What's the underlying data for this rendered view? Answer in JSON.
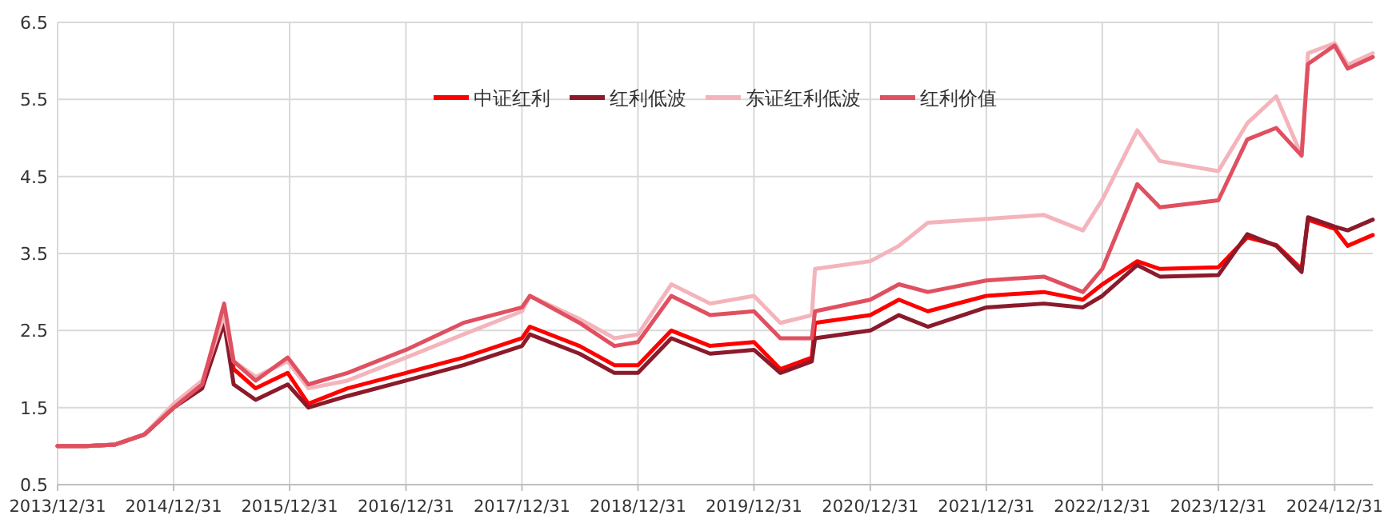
{
  "chart_data": {
    "type": "line",
    "x": [
      "2013-12-31",
      "2014-03-31",
      "2014-06-30",
      "2014-09-30",
      "2014-12-31",
      "2015-03-31",
      "2015-06-08",
      "2015-07-08",
      "2015-09-15",
      "2015-12-25",
      "2016-02-28",
      "2016-06-30",
      "2016-12-31",
      "2017-06-30",
      "2017-12-31",
      "2018-01-25",
      "2018-06-30",
      "2018-10-18",
      "2018-12-31",
      "2019-04-15",
      "2019-08-15",
      "2019-12-31",
      "2020-03-23",
      "2020-06-30",
      "2020-07-10",
      "2020-12-31",
      "2021-03-31",
      "2021-06-30",
      "2021-12-31",
      "2022-06-30",
      "2022-10-31",
      "2022-12-31",
      "2023-04-20",
      "2023-06-30",
      "2023-12-31",
      "2024-03-31",
      "2024-06-30",
      "2024-09-18",
      "2024-10-08",
      "2024-12-31",
      "2025-02-10",
      "2025-04-30"
    ],
    "series": [
      {
        "name": "中证红利",
        "color": "#ff0000",
        "values": [
          1.0,
          1.0,
          1.02,
          1.15,
          1.5,
          1.8,
          2.8,
          2.0,
          1.75,
          1.95,
          1.55,
          1.75,
          1.95,
          2.15,
          2.4,
          2.55,
          2.3,
          2.05,
          2.05,
          2.5,
          2.3,
          2.35,
          2.0,
          2.15,
          2.6,
          2.7,
          2.9,
          2.75,
          2.95,
          3.0,
          2.9,
          3.1,
          3.4,
          3.3,
          3.32,
          3.71,
          3.61,
          3.3,
          3.94,
          3.82,
          3.6,
          3.74
        ]
      },
      {
        "name": "红利低波",
        "color": "#8b1a2b",
        "values": [
          1.0,
          1.0,
          1.02,
          1.15,
          1.5,
          1.75,
          2.6,
          1.8,
          1.6,
          1.8,
          1.5,
          1.65,
          1.85,
          2.05,
          2.3,
          2.45,
          2.2,
          1.95,
          1.95,
          2.4,
          2.2,
          2.25,
          1.95,
          2.1,
          2.4,
          2.5,
          2.7,
          2.55,
          2.8,
          2.85,
          2.8,
          2.95,
          3.35,
          3.2,
          3.22,
          3.75,
          3.6,
          3.26,
          3.97,
          3.85,
          3.8,
          3.94
        ]
      },
      {
        "name": "东证红利低波",
        "color": "#f4b4bc",
        "values": [
          1.0,
          1.0,
          1.02,
          1.15,
          1.55,
          1.85,
          2.7,
          2.1,
          1.9,
          2.1,
          1.75,
          1.85,
          2.15,
          2.45,
          2.75,
          2.95,
          2.65,
          2.4,
          2.45,
          3.1,
          2.85,
          2.95,
          2.6,
          2.7,
          3.3,
          3.4,
          3.6,
          3.9,
          3.95,
          4.0,
          3.8,
          4.2,
          5.1,
          4.7,
          4.57,
          5.19,
          5.54,
          4.77,
          6.1,
          6.23,
          5.95,
          6.1
        ]
      },
      {
        "name": "红利价值",
        "color": "#e05060",
        "values": [
          1.0,
          1.0,
          1.02,
          1.15,
          1.5,
          1.8,
          2.85,
          2.1,
          1.85,
          2.15,
          1.8,
          1.95,
          2.25,
          2.6,
          2.8,
          2.95,
          2.6,
          2.3,
          2.35,
          2.95,
          2.7,
          2.75,
          2.4,
          2.4,
          2.75,
          2.9,
          3.1,
          3.0,
          3.15,
          3.2,
          3.0,
          3.3,
          4.4,
          4.1,
          4.19,
          4.98,
          5.13,
          4.77,
          5.96,
          6.2,
          5.9,
          6.05
        ]
      }
    ],
    "xlim": [
      "2013-12-31",
      "2025-04-30"
    ],
    "xticks": [
      {
        "value": "2013-12-31",
        "label": "2013/12/31"
      },
      {
        "value": "2014-12-31",
        "label": "2014/12/31"
      },
      {
        "value": "2015-12-31",
        "label": "2015/12/31"
      },
      {
        "value": "2016-12-31",
        "label": "2016/12/31"
      },
      {
        "value": "2017-12-31",
        "label": "2017/12/31"
      },
      {
        "value": "2018-12-31",
        "label": "2018/12/31"
      },
      {
        "value": "2019-12-31",
        "label": "2019/12/31"
      },
      {
        "value": "2020-12-31",
        "label": "2020/12/31"
      },
      {
        "value": "2021-12-31",
        "label": "2021/12/31"
      },
      {
        "value": "2022-12-31",
        "label": "2022/12/31"
      },
      {
        "value": "2023-12-31",
        "label": "2023/12/31"
      },
      {
        "value": "2024-12-31",
        "label": "2024/12/31"
      }
    ],
    "ylim": [
      0.5,
      6.5
    ],
    "yticks": [
      0.5,
      1.5,
      2.5,
      3.5,
      4.5,
      5.5,
      6.5
    ],
    "grid": true,
    "legend": "top",
    "marker": "none",
    "line_style": "solid"
  }
}
